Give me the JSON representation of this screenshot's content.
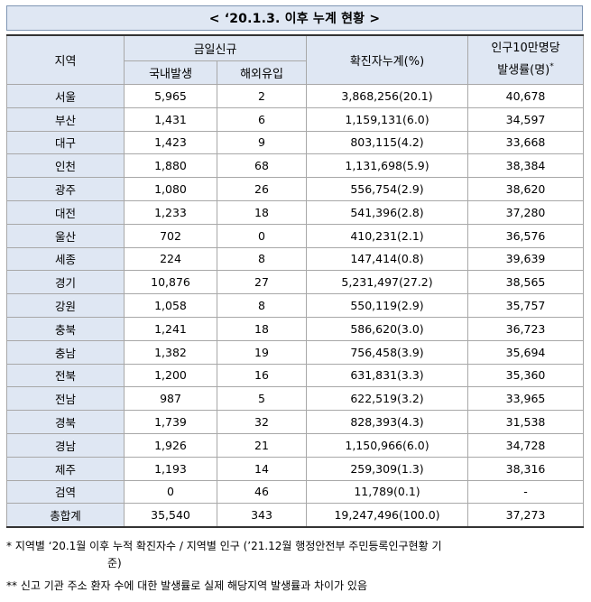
{
  "title": "< ‘20.1.3. 이후 누계 현황 >",
  "headers": {
    "region": "지역",
    "daily_new": "금일신규",
    "domestic": "국내발생",
    "overseas": "해외유입",
    "cumulative": "확진자누계(%)",
    "rate_line1": "인구10만명당",
    "rate_line2": "발생률(명)",
    "rate_mark": "*"
  },
  "rows": [
    {
      "region": "서울",
      "domestic": "5,965",
      "overseas": "2",
      "cumulative": "3,868,256(20.1)",
      "rate": "40,678"
    },
    {
      "region": "부산",
      "domestic": "1,431",
      "overseas": "6",
      "cumulative": "1,159,131(6.0)",
      "rate": "34,597"
    },
    {
      "region": "대구",
      "domestic": "1,423",
      "overseas": "9",
      "cumulative": "803,115(4.2)",
      "rate": "33,668"
    },
    {
      "region": "인천",
      "domestic": "1,880",
      "overseas": "68",
      "cumulative": "1,131,698(5.9)",
      "rate": "38,384"
    },
    {
      "region": "광주",
      "domestic": "1,080",
      "overseas": "26",
      "cumulative": "556,754(2.9)",
      "rate": "38,620"
    },
    {
      "region": "대전",
      "domestic": "1,233",
      "overseas": "18",
      "cumulative": "541,396(2.8)",
      "rate": "37,280"
    },
    {
      "region": "울산",
      "domestic": "702",
      "overseas": "0",
      "cumulative": "410,231(2.1)",
      "rate": "36,576"
    },
    {
      "region": "세종",
      "domestic": "224",
      "overseas": "8",
      "cumulative": "147,414(0.8)",
      "rate": "39,639"
    },
    {
      "region": "경기",
      "domestic": "10,876",
      "overseas": "27",
      "cumulative": "5,231,497(27.2)",
      "rate": "38,565"
    },
    {
      "region": "강원",
      "domestic": "1,058",
      "overseas": "8",
      "cumulative": "550,119(2.9)",
      "rate": "35,757"
    },
    {
      "region": "충북",
      "domestic": "1,241",
      "overseas": "18",
      "cumulative": "586,620(3.0)",
      "rate": "36,723"
    },
    {
      "region": "충남",
      "domestic": "1,382",
      "overseas": "19",
      "cumulative": "756,458(3.9)",
      "rate": "35,694"
    },
    {
      "region": "전북",
      "domestic": "1,200",
      "overseas": "16",
      "cumulative": "631,831(3.3)",
      "rate": "35,360"
    },
    {
      "region": "전남",
      "domestic": "987",
      "overseas": "5",
      "cumulative": "622,519(3.2)",
      "rate": "33,965"
    },
    {
      "region": "경북",
      "domestic": "1,739",
      "overseas": "32",
      "cumulative": "828,393(4.3)",
      "rate": "31,538"
    },
    {
      "region": "경남",
      "domestic": "1,926",
      "overseas": "21",
      "cumulative": "1,150,966(6.0)",
      "rate": "34,728"
    },
    {
      "region": "제주",
      "domestic": "1,193",
      "overseas": "14",
      "cumulative": "259,309(1.3)",
      "rate": "38,316"
    },
    {
      "region": "검역",
      "domestic": "0",
      "overseas": "46",
      "cumulative": "11,789(0.1)",
      "rate": "-"
    },
    {
      "region": "총합계",
      "domestic": "35,540",
      "overseas": "343",
      "cumulative": "19,247,496(100.0)",
      "rate": "37,273"
    }
  ],
  "notes": {
    "note1_line1": "* 지역별 ‘20.1월 이후 누적 확진자수 / 지역별 인구 (’21.12월 행정안전부 주민등록인구현황 기",
    "note1_line2": "준)",
    "note2": "** 신고 기관 주소 환자 수에 대한 발생률로 실제 해당지역 발생률과 차이가 있음"
  }
}
